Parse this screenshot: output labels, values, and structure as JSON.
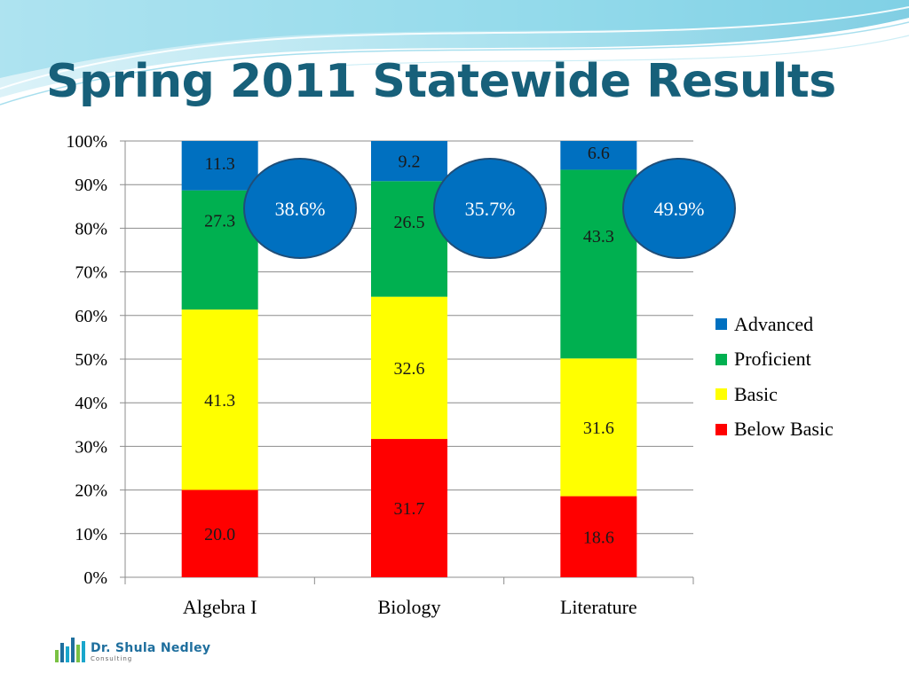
{
  "slide": {
    "title": "Spring 2011 Statewide Results"
  },
  "logo": {
    "name": "Dr. Shula Nedley",
    "subtitle": "Consulting"
  },
  "chart_data": {
    "type": "bar",
    "stacked": true,
    "stack_mode": "percent",
    "categories": [
      "Algebra I",
      "Biology",
      "Literature"
    ],
    "series": [
      {
        "name": "Below Basic",
        "color": "#ff0000",
        "values": [
          20.0,
          31.7,
          18.6
        ],
        "labels": [
          "20.0",
          "31.7",
          "18.6"
        ]
      },
      {
        "name": "Basic",
        "color": "#ffff00",
        "values": [
          41.3,
          32.6,
          31.6
        ],
        "labels": [
          "41.3",
          "32.6",
          "31.6"
        ]
      },
      {
        "name": "Proficient",
        "color": "#00b050",
        "values": [
          27.3,
          26.5,
          43.3
        ],
        "labels": [
          "27.3",
          "26.5",
          "43.3"
        ]
      },
      {
        "name": "Advanced",
        "color": "#0070c0",
        "values": [
          11.3,
          9.2,
          6.6
        ],
        "labels": [
          "11.3",
          "9.2",
          "6.6"
        ]
      }
    ],
    "yticks": [
      "0%",
      "10%",
      "20%",
      "30%",
      "40%",
      "50%",
      "60%",
      "70%",
      "80%",
      "90%",
      "100%"
    ],
    "ylim": [
      0,
      100
    ],
    "grid": true,
    "legend_position": "right",
    "legend_order": [
      "Advanced",
      "Proficient",
      "Basic",
      "Below Basic"
    ],
    "annotations": [
      {
        "text": "38.6%",
        "category": "Algebra I"
      },
      {
        "text": "35.7%",
        "category": "Biology"
      },
      {
        "text": "49.9%",
        "category": "Literature"
      }
    ]
  }
}
